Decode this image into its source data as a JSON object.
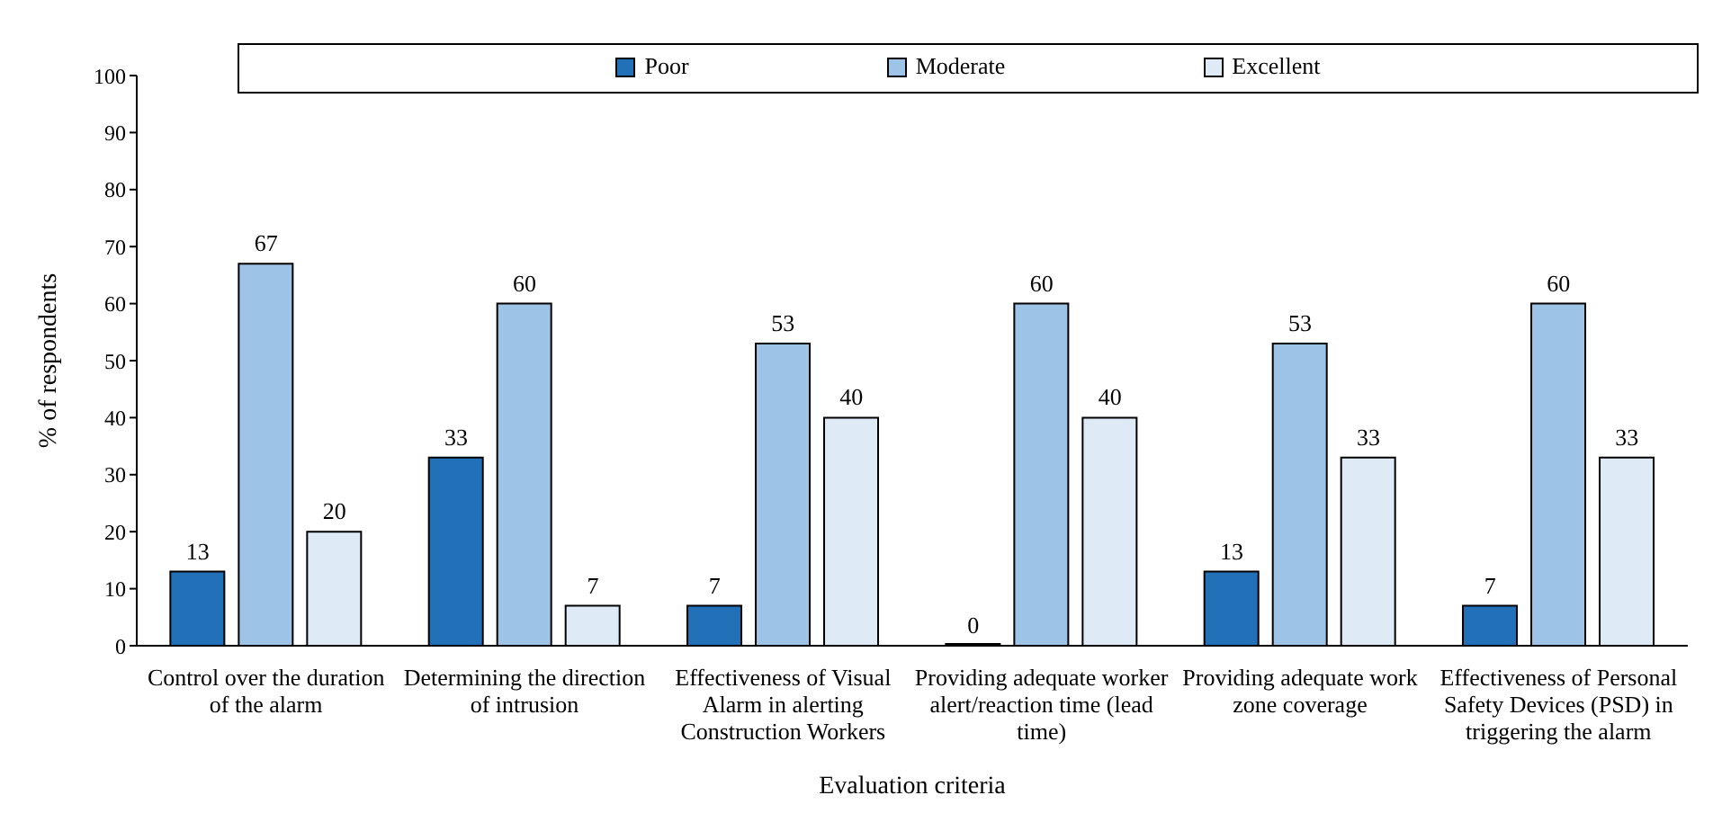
{
  "chart_data": {
    "type": "bar",
    "xlabel": "Evaluation criteria",
    "ylabel": "% of respondents",
    "categories": [
      "Control over the duration of the alarm",
      "Determining the direction of intrusion",
      "Effectiveness of Visual Alarm in alerting Construction Workers",
      "Providing adequate worker alert/reaction time (lead time)",
      "Providing adequate work zone coverage",
      "Effectiveness of Personal Safety Devices (PSD) in triggering the alarm"
    ],
    "series": [
      {
        "name": "Poor",
        "color": "#2270b8",
        "values": [
          13,
          33,
          7,
          0,
          13,
          7
        ]
      },
      {
        "name": "Moderate",
        "color": "#9dc3e6",
        "values": [
          67,
          60,
          53,
          60,
          53,
          60
        ]
      },
      {
        "name": "Excellent",
        "color": "#deebf7",
        "values": [
          20,
          7,
          40,
          40,
          33,
          33
        ]
      }
    ],
    "ylim": [
      0,
      100
    ],
    "yticks": [
      0,
      10,
      20,
      30,
      40,
      50,
      60,
      70,
      80,
      90,
      100
    ],
    "data_labels": true,
    "legend": "top",
    "grid": false
  }
}
